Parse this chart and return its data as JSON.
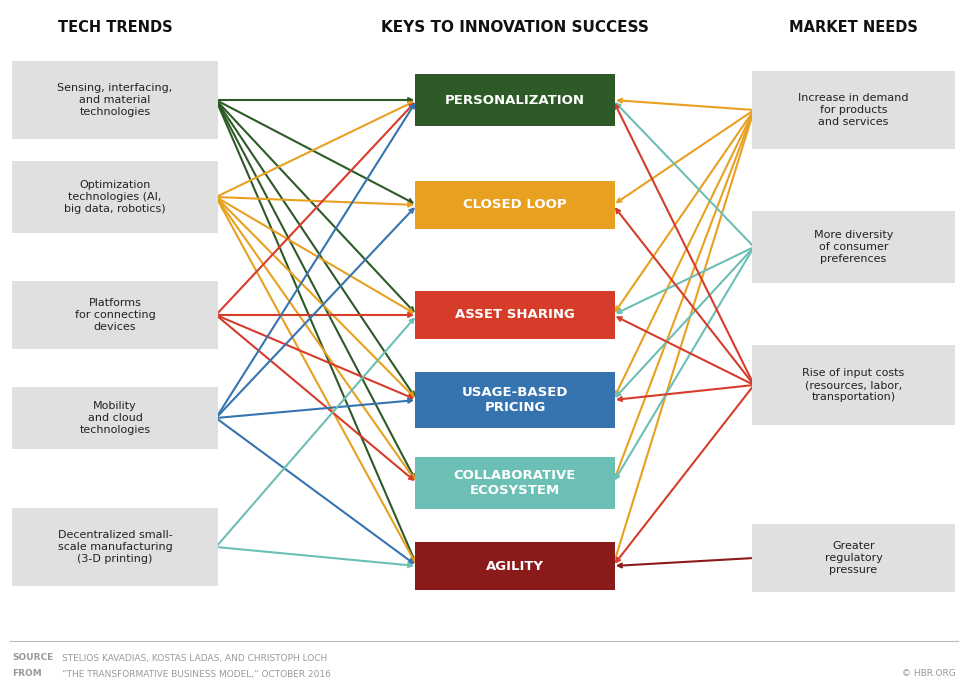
{
  "title_center": "KEYS TO INNOVATION SUCCESS",
  "title_left": "TECH TRENDS",
  "title_right": "MARKET NEEDS",
  "tech_trends": [
    "Sensing, interfacing,\nand material\ntechnologies",
    "Optimization\ntechnologies (AI,\nbig data, robotics)",
    "Platforms\nfor connecting\ndevices",
    "Mobility\nand cloud\ntechnologies",
    "Decentralized small-\nscale manufacturing\n(3-D printing)"
  ],
  "keys": [
    "PERSONALIZATION",
    "CLOSED LOOP",
    "ASSET SHARING",
    "USAGE-BASED\nPRICING",
    "COLLABORATIVE\nECOSYSTEM",
    "AGILITY"
  ],
  "market_needs": [
    "Increase in demand\nfor products\nand services",
    "More diversity\nof consumer\npreferences",
    "Rise of input costs\n(resources, labor,\ntransportation)",
    "Greater\nregulatory\npressure"
  ],
  "key_colors": [
    "#2d5a27",
    "#e8a020",
    "#d63c2a",
    "#3674b0",
    "#6bbfb5",
    "#8b1a1a"
  ],
  "left_line_colors": [
    "#2d5a27",
    "#e8a020",
    "#d63c2a",
    "#3674b0",
    "#6bbfb5"
  ],
  "right_line_colors": [
    "#e8a020",
    "#6bbfb5",
    "#d63c2a",
    "#8b1a1a"
  ],
  "source_bold": "SOURCE",
  "source_text": "  STELIOS KAVADIAS, KOSTAS LADAS, AND CHRISTOPH LOCH",
  "from_bold": "FROM",
  "from_text": "  “THE TRANSFORMATIVE BUSINESS MODEL,” OCTOBER 2016",
  "copyright": "© HBR.ORG",
  "connections_left": [
    [
      0,
      [
        0,
        1,
        2,
        3,
        4,
        5
      ]
    ],
    [
      1,
      [
        0,
        1,
        2,
        3,
        4,
        5
      ]
    ],
    [
      2,
      [
        0,
        2,
        3,
        4
      ]
    ],
    [
      3,
      [
        0,
        1,
        3,
        5
      ]
    ],
    [
      4,
      [
        2,
        5
      ]
    ]
  ],
  "connections_right": [
    [
      0,
      [
        0,
        1,
        2,
        3,
        4,
        5
      ]
    ],
    [
      1,
      [
        0,
        2,
        3,
        4
      ]
    ],
    [
      2,
      [
        0,
        1,
        2,
        3,
        5
      ]
    ],
    [
      3,
      [
        5
      ]
    ]
  ]
}
